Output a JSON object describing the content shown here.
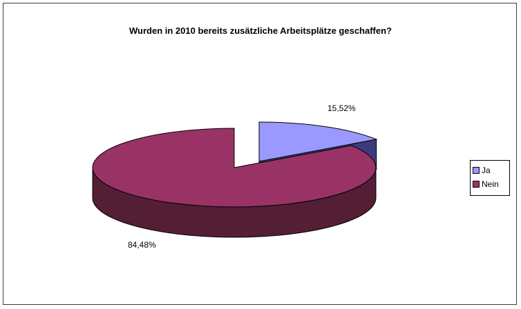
{
  "chart_data": {
    "type": "pie",
    "title": "Wurden in 2010 bereits zusätzliche Arbeitsplätze geschaffen?",
    "categories": [
      "Ja",
      "Nein"
    ],
    "values": [
      15.52,
      84.48
    ],
    "data_labels": [
      "15,52%",
      "84,48%"
    ],
    "colors": [
      "#9999ff",
      "#993366"
    ],
    "side_colors": [
      "#3c3c7a",
      "#541e35"
    ],
    "exploded": true,
    "three_d": true,
    "legend_position": "right"
  }
}
